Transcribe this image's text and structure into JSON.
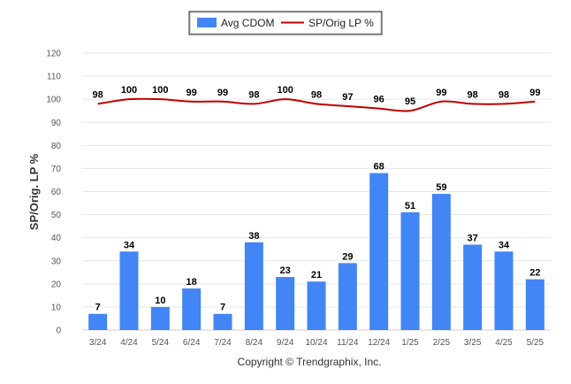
{
  "chart_data": {
    "type": "bar",
    "ylabel": "SP/Orig. LP %",
    "ylim": [
      0,
      120
    ],
    "yticks": [
      0,
      10,
      20,
      30,
      40,
      50,
      60,
      70,
      80,
      90,
      100,
      110,
      120
    ],
    "grid": true,
    "legend_position": "top-center",
    "categories": [
      "3/24",
      "4/24",
      "5/24",
      "6/24",
      "7/24",
      "8/24",
      "9/24",
      "10/24",
      "11/24",
      "12/24",
      "1/25",
      "2/25",
      "3/25",
      "4/25",
      "5/25"
    ],
    "series": [
      {
        "name": "Avg CDOM",
        "type": "bar",
        "color": "#4285f4",
        "values": [
          7,
          34,
          10,
          18,
          7,
          38,
          23,
          21,
          29,
          68,
          51,
          59,
          37,
          34,
          22
        ]
      },
      {
        "name": "SP/Orig LP %",
        "type": "line",
        "color": "#c00000",
        "values": [
          98,
          100,
          100,
          99,
          99,
          98,
          100,
          98,
          97,
          96,
          95,
          99,
          98,
          98,
          99
        ]
      }
    ],
    "footer": "Copyright © Trendgraphix, Inc."
  }
}
